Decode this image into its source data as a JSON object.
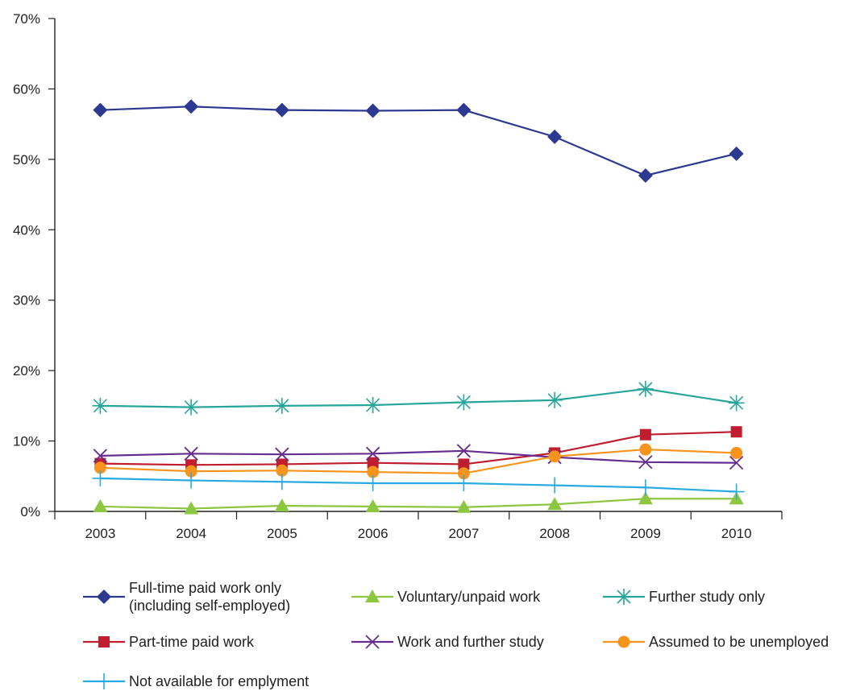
{
  "chart_data": {
    "type": "line",
    "title": "",
    "xlabel": "",
    "ylabel": "",
    "categories": [
      "2003",
      "2004",
      "2005",
      "2006",
      "2007",
      "2008",
      "2009",
      "2010"
    ],
    "y_ticks": [
      "0%",
      "10%",
      "20%",
      "30%",
      "40%",
      "50%",
      "60%",
      "70%"
    ],
    "ylim": [
      0,
      70
    ],
    "y_unit": "%",
    "grid": false,
    "legend_position": "bottom",
    "series": [
      {
        "name": "Full-time paid work only (including self-employed)",
        "name_lines": [
          "Full-time paid work only",
          "(including self-employed)"
        ],
        "color": "#2b3990",
        "marker": "diamond",
        "values": [
          57.0,
          57.5,
          57.0,
          56.9,
          57.0,
          53.2,
          47.7,
          50.8
        ]
      },
      {
        "name": "Voluntary/unpaid work",
        "name_lines": [
          "Voluntary/unpaid work"
        ],
        "color": "#8dc63f",
        "marker": "triangle",
        "values": [
          0.7,
          0.4,
          0.8,
          0.7,
          0.6,
          1.0,
          1.8,
          1.8
        ]
      },
      {
        "name": "Further study only",
        "name_lines": [
          "Further study only"
        ],
        "color": "#26a69a",
        "marker": "asterisk",
        "values": [
          15.0,
          14.8,
          15.0,
          15.1,
          15.5,
          15.8,
          17.4,
          15.4
        ]
      },
      {
        "name": "Part-time paid work",
        "name_lines": [
          "Part-time paid work"
        ],
        "color": "#be1e2d",
        "marker": "square",
        "values": [
          6.8,
          6.6,
          6.7,
          6.9,
          6.7,
          8.3,
          10.9,
          11.3
        ]
      },
      {
        "name": "Work and further study",
        "name_lines": [
          "Work and further study"
        ],
        "color": "#662d91",
        "marker": "x",
        "values": [
          7.9,
          8.2,
          8.1,
          8.2,
          8.6,
          7.7,
          7.0,
          6.9
        ]
      },
      {
        "name": "Assumed to be unemployed",
        "name_lines": [
          "Assumed to be unemployed"
        ],
        "color": "#f7941d",
        "marker": "circle",
        "values": [
          6.2,
          5.7,
          5.8,
          5.6,
          5.4,
          7.8,
          8.8,
          8.3
        ]
      },
      {
        "name": "Not available for emplyment",
        "name_lines": [
          "Not available for emplyment"
        ],
        "color": "#29abe2",
        "marker": "plus",
        "values": [
          4.7,
          4.4,
          4.2,
          4.0,
          4.0,
          3.7,
          3.4,
          2.8
        ]
      }
    ]
  }
}
